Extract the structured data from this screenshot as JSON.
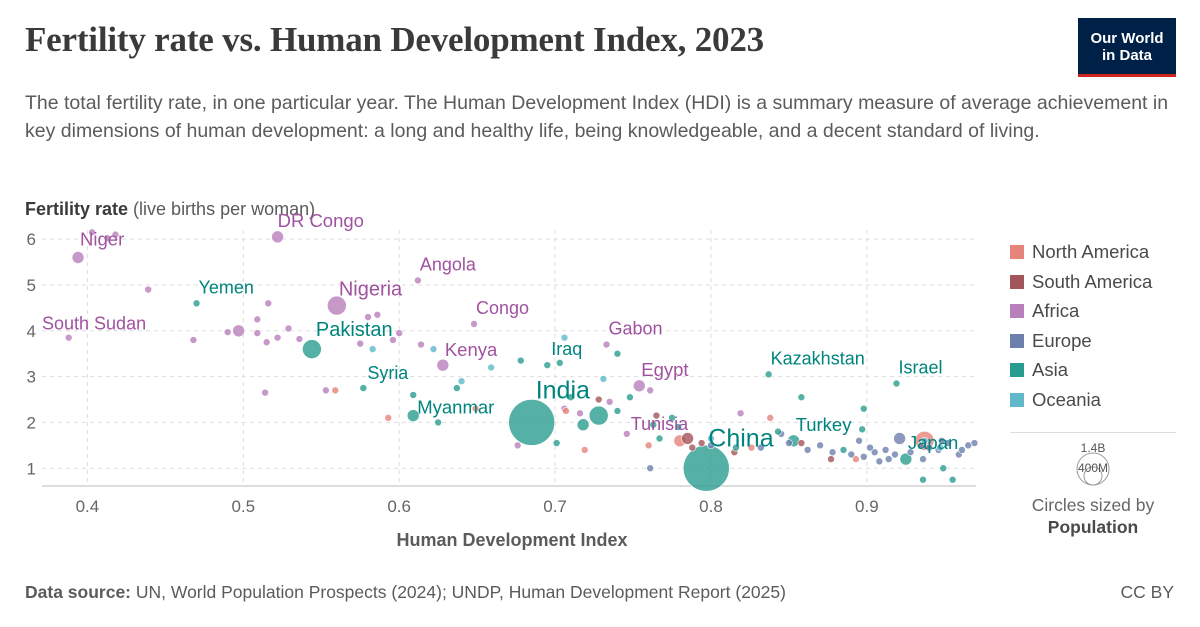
{
  "header": {
    "title": "Fertility rate vs. Human Development Index, 2023",
    "subtitle": "The total fertility rate, in one particular year. The Human Development Index (HDI) is a summary measure of average achievement in key dimensions of human development: a long and healthy life, being knowledgeable, and a decent standard of living.",
    "logo_line1": "Our World",
    "logo_line2": "in Data"
  },
  "axis": {
    "y_bold": "Fertility rate",
    "y_rest": " (live births per woman)",
    "x_title": "Human Development Index"
  },
  "legend": {
    "items": [
      {
        "name": "North America",
        "color": "#e6837a"
      },
      {
        "name": "South America",
        "color": "#a2555a"
      },
      {
        "name": "Africa",
        "color": "#b97fbb"
      },
      {
        "name": "Europe",
        "color": "#6d7fad"
      },
      {
        "name": "Asia",
        "color": "#2a9c8f"
      },
      {
        "name": "Oceania",
        "color": "#5fb9c9"
      }
    ],
    "size_big": "1.4B",
    "size_small": "400M",
    "size_caption1": "Circles sized by",
    "size_caption2": "Population"
  },
  "footer": {
    "source_bold": "Data source:",
    "source_text": " UN, World Population Prospects (2024); UNDP, Human Development Report (2025)",
    "license": "CC BY"
  },
  "chart_data": {
    "type": "scatter",
    "title": "Fertility rate vs. Human Development Index, 2023",
    "xlabel": "Human Development Index",
    "ylabel": "Fertility rate (live births per woman)",
    "xlim": [
      0.385,
      0.97
    ],
    "ylim": [
      0.7,
      6.2
    ],
    "xticks": [
      "0.4",
      "0.5",
      "0.6",
      "0.7",
      "0.8",
      "0.9"
    ],
    "xtick_values": [
      0.4,
      0.5,
      0.6,
      0.7,
      0.8,
      0.9
    ],
    "yticks": [
      "1",
      "2",
      "3",
      "4",
      "5",
      "6"
    ],
    "ytick_values": [
      1,
      2,
      3,
      4,
      5,
      6
    ],
    "grid": true,
    "legend_position": "right",
    "size_variable": "Population",
    "points": [
      {
        "x": 0.394,
        "y": 5.6,
        "r": "Africa",
        "p": "med",
        "label": "Niger"
      },
      {
        "x": 0.522,
        "y": 6.05,
        "r": "Africa",
        "p": "med",
        "label": "DR Congo"
      },
      {
        "x": 0.612,
        "y": 5.1,
        "r": "Africa",
        "p": "small",
        "label": "Angola"
      },
      {
        "x": 0.47,
        "y": 4.6,
        "r": "Asia",
        "p": "small",
        "label": "Yemen"
      },
      {
        "x": 0.56,
        "y": 4.55,
        "r": "Africa",
        "p": "large",
        "label": "Nigeria"
      },
      {
        "x": 0.648,
        "y": 4.15,
        "r": "Africa",
        "p": "small",
        "label": "Congo"
      },
      {
        "x": 0.388,
        "y": 3.85,
        "r": "Africa",
        "p": "small",
        "label": "South Sudan"
      },
      {
        "x": 0.544,
        "y": 3.6,
        "r": "Asia",
        "p": "large",
        "label": "Pakistan"
      },
      {
        "x": 0.733,
        "y": 3.7,
        "r": "Africa",
        "p": "small",
        "label": "Gabon"
      },
      {
        "x": 0.628,
        "y": 3.25,
        "r": "Africa",
        "p": "med",
        "label": "Kenya"
      },
      {
        "x": 0.695,
        "y": 3.25,
        "r": "Asia",
        "p": "small",
        "label": "Iraq"
      },
      {
        "x": 0.754,
        "y": 2.8,
        "r": "Africa",
        "p": "med",
        "label": "Egypt"
      },
      {
        "x": 0.577,
        "y": 2.75,
        "r": "Asia",
        "p": "small",
        "label": "Syria"
      },
      {
        "x": 0.837,
        "y": 3.05,
        "r": "Asia",
        "p": "small",
        "label": "Kazakhstan"
      },
      {
        "x": 0.919,
        "y": 2.85,
        "r": "Asia",
        "p": "small",
        "label": "Israel"
      },
      {
        "x": 0.685,
        "y": 2.0,
        "r": "Asia",
        "p": "huge",
        "label": "India"
      },
      {
        "x": 0.609,
        "y": 2.15,
        "r": "Asia",
        "p": "med",
        "label": "Myanmar"
      },
      {
        "x": 0.746,
        "y": 1.75,
        "r": "Africa",
        "p": "small",
        "label": "Tunisia"
      },
      {
        "x": 0.797,
        "y": 1.0,
        "r": "Asia",
        "p": "huge",
        "label": "China"
      },
      {
        "x": 0.853,
        "y": 1.6,
        "r": "Asia",
        "p": "med",
        "label": "Turkey"
      },
      {
        "x": 0.925,
        "y": 1.2,
        "r": "Asia",
        "p": "med",
        "label": "Japan"
      },
      {
        "x": 0.403,
        "y": 6.15,
        "r": "Africa",
        "p": "small"
      },
      {
        "x": 0.413,
        "y": 6.02,
        "r": "Africa",
        "p": "small"
      },
      {
        "x": 0.418,
        "y": 6.1,
        "r": "Africa",
        "p": "small"
      },
      {
        "x": 0.439,
        "y": 4.9,
        "r": "Africa",
        "p": "small"
      },
      {
        "x": 0.497,
        "y": 4.0,
        "r": "Africa",
        "p": "med"
      },
      {
        "x": 0.49,
        "y": 3.97,
        "r": "Africa",
        "p": "small"
      },
      {
        "x": 0.509,
        "y": 4.25,
        "r": "Africa",
        "p": "small"
      },
      {
        "x": 0.516,
        "y": 4.6,
        "r": "Africa",
        "p": "small"
      },
      {
        "x": 0.509,
        "y": 3.95,
        "r": "Africa",
        "p": "small"
      },
      {
        "x": 0.515,
        "y": 3.75,
        "r": "Africa",
        "p": "small"
      },
      {
        "x": 0.522,
        "y": 3.85,
        "r": "Africa",
        "p": "small"
      },
      {
        "x": 0.536,
        "y": 3.82,
        "r": "Africa",
        "p": "small"
      },
      {
        "x": 0.529,
        "y": 4.05,
        "r": "Africa",
        "p": "small"
      },
      {
        "x": 0.468,
        "y": 3.8,
        "r": "Africa",
        "p": "small"
      },
      {
        "x": 0.514,
        "y": 2.65,
        "r": "Africa",
        "p": "small"
      },
      {
        "x": 0.586,
        "y": 4.35,
        "r": "Africa",
        "p": "small"
      },
      {
        "x": 0.58,
        "y": 4.3,
        "r": "Africa",
        "p": "small"
      },
      {
        "x": 0.596,
        "y": 3.8,
        "r": "Africa",
        "p": "small"
      },
      {
        "x": 0.6,
        "y": 3.95,
        "r": "Africa",
        "p": "small"
      },
      {
        "x": 0.614,
        "y": 3.7,
        "r": "Africa",
        "p": "small"
      },
      {
        "x": 0.575,
        "y": 3.72,
        "r": "Africa",
        "p": "small"
      },
      {
        "x": 0.553,
        "y": 2.7,
        "r": "Africa",
        "p": "small"
      },
      {
        "x": 0.559,
        "y": 2.7,
        "r": "North America",
        "p": "small"
      },
      {
        "x": 0.676,
        "y": 1.5,
        "r": "Africa",
        "p": "small"
      },
      {
        "x": 0.706,
        "y": 2.3,
        "r": "Africa",
        "p": "small"
      },
      {
        "x": 0.716,
        "y": 2.2,
        "r": "Africa",
        "p": "small"
      },
      {
        "x": 0.735,
        "y": 2.45,
        "r": "Africa",
        "p": "small"
      },
      {
        "x": 0.761,
        "y": 2.7,
        "r": "Africa",
        "p": "small"
      },
      {
        "x": 0.819,
        "y": 2.2,
        "r": "Africa",
        "p": "small"
      },
      {
        "x": 0.593,
        "y": 2.1,
        "r": "North America",
        "p": "small"
      },
      {
        "x": 0.649,
        "y": 2.3,
        "r": "North America",
        "p": "small"
      },
      {
        "x": 0.707,
        "y": 2.25,
        "r": "North America",
        "p": "small"
      },
      {
        "x": 0.719,
        "y": 1.4,
        "r": "North America",
        "p": "small"
      },
      {
        "x": 0.76,
        "y": 1.5,
        "r": "North America",
        "p": "small"
      },
      {
        "x": 0.78,
        "y": 1.6,
        "r": "North America",
        "p": "med"
      },
      {
        "x": 0.826,
        "y": 1.45,
        "r": "North America",
        "p": "small"
      },
      {
        "x": 0.838,
        "y": 2.1,
        "r": "North America",
        "p": "small"
      },
      {
        "x": 0.937,
        "y": 1.6,
        "r": "North America",
        "p": "large"
      },
      {
        "x": 0.893,
        "y": 1.2,
        "r": "North America",
        "p": "small"
      },
      {
        "x": 0.728,
        "y": 2.5,
        "r": "South America",
        "p": "small"
      },
      {
        "x": 0.765,
        "y": 2.15,
        "r": "South America",
        "p": "small"
      },
      {
        "x": 0.785,
        "y": 1.65,
        "r": "South America",
        "p": "med"
      },
      {
        "x": 0.794,
        "y": 1.55,
        "r": "South America",
        "p": "small"
      },
      {
        "x": 0.788,
        "y": 1.45,
        "r": "South America",
        "p": "small"
      },
      {
        "x": 0.815,
        "y": 1.35,
        "r": "South America",
        "p": "small"
      },
      {
        "x": 0.858,
        "y": 1.55,
        "r": "South America",
        "p": "small"
      },
      {
        "x": 0.877,
        "y": 1.2,
        "r": "South America",
        "p": "small"
      },
      {
        "x": 0.761,
        "y": 1.0,
        "r": "Europe",
        "p": "small"
      },
      {
        "x": 0.8,
        "y": 1.5,
        "r": "Europe",
        "p": "small"
      },
      {
        "x": 0.832,
        "y": 1.45,
        "r": "Europe",
        "p": "small"
      },
      {
        "x": 0.845,
        "y": 1.75,
        "r": "Europe",
        "p": "small"
      },
      {
        "x": 0.85,
        "y": 1.55,
        "r": "Europe",
        "p": "small"
      },
      {
        "x": 0.862,
        "y": 1.4,
        "r": "Europe",
        "p": "small"
      },
      {
        "x": 0.87,
        "y": 1.5,
        "r": "Europe",
        "p": "small"
      },
      {
        "x": 0.878,
        "y": 1.35,
        "r": "Europe",
        "p": "small"
      },
      {
        "x": 0.89,
        "y": 1.3,
        "r": "Europe",
        "p": "small"
      },
      {
        "x": 0.895,
        "y": 1.6,
        "r": "Europe",
        "p": "small"
      },
      {
        "x": 0.905,
        "y": 1.35,
        "r": "Europe",
        "p": "small"
      },
      {
        "x": 0.912,
        "y": 1.4,
        "r": "Europe",
        "p": "small"
      },
      {
        "x": 0.918,
        "y": 1.3,
        "r": "Europe",
        "p": "small"
      },
      {
        "x": 0.921,
        "y": 1.65,
        "r": "Europe",
        "p": "med"
      },
      {
        "x": 0.928,
        "y": 1.35,
        "r": "Europe",
        "p": "small"
      },
      {
        "x": 0.935,
        "y": 1.5,
        "r": "Europe",
        "p": "small"
      },
      {
        "x": 0.94,
        "y": 1.45,
        "r": "Europe",
        "p": "small"
      },
      {
        "x": 0.946,
        "y": 1.4,
        "r": "Europe",
        "p": "small"
      },
      {
        "x": 0.952,
        "y": 1.55,
        "r": "Europe",
        "p": "small"
      },
      {
        "x": 0.959,
        "y": 1.3,
        "r": "Europe",
        "p": "small"
      },
      {
        "x": 0.965,
        "y": 1.5,
        "r": "Europe",
        "p": "small"
      },
      {
        "x": 0.914,
        "y": 1.2,
        "r": "Europe",
        "p": "small"
      },
      {
        "x": 0.898,
        "y": 1.25,
        "r": "Europe",
        "p": "small"
      },
      {
        "x": 0.936,
        "y": 1.2,
        "r": "Europe",
        "p": "small"
      },
      {
        "x": 0.908,
        "y": 1.15,
        "r": "Europe",
        "p": "small"
      },
      {
        "x": 0.902,
        "y": 1.45,
        "r": "Europe",
        "p": "small"
      },
      {
        "x": 0.948,
        "y": 1.6,
        "r": "Europe",
        "p": "small"
      },
      {
        "x": 0.961,
        "y": 1.4,
        "r": "Europe",
        "p": "small"
      },
      {
        "x": 0.969,
        "y": 1.55,
        "r": "Europe",
        "p": "small"
      },
      {
        "x": 0.609,
        "y": 2.6,
        "r": "Asia",
        "p": "small"
      },
      {
        "x": 0.637,
        "y": 2.75,
        "r": "Asia",
        "p": "small"
      },
      {
        "x": 0.625,
        "y": 2.0,
        "r": "Asia",
        "p": "small"
      },
      {
        "x": 0.678,
        "y": 3.35,
        "r": "Asia",
        "p": "small"
      },
      {
        "x": 0.703,
        "y": 3.3,
        "r": "Asia",
        "p": "small"
      },
      {
        "x": 0.74,
        "y": 3.5,
        "r": "Asia",
        "p": "small"
      },
      {
        "x": 0.71,
        "y": 2.55,
        "r": "Asia",
        "p": "small"
      },
      {
        "x": 0.718,
        "y": 1.95,
        "r": "Asia",
        "p": "med"
      },
      {
        "x": 0.728,
        "y": 2.15,
        "r": "Asia",
        "p": "large"
      },
      {
        "x": 0.74,
        "y": 2.25,
        "r": "Asia",
        "p": "small"
      },
      {
        "x": 0.748,
        "y": 2.55,
        "r": "Asia",
        "p": "small"
      },
      {
        "x": 0.763,
        "y": 1.95,
        "r": "Asia",
        "p": "small"
      },
      {
        "x": 0.767,
        "y": 1.65,
        "r": "Asia",
        "p": "small"
      },
      {
        "x": 0.775,
        "y": 2.1,
        "r": "Asia",
        "p": "small"
      },
      {
        "x": 0.779,
        "y": 1.9,
        "r": "Asia",
        "p": "small"
      },
      {
        "x": 0.701,
        "y": 1.55,
        "r": "Asia",
        "p": "small"
      },
      {
        "x": 0.816,
        "y": 1.45,
        "r": "Asia",
        "p": "small"
      },
      {
        "x": 0.843,
        "y": 1.8,
        "r": "Asia",
        "p": "small"
      },
      {
        "x": 0.858,
        "y": 2.55,
        "r": "Asia",
        "p": "small"
      },
      {
        "x": 0.885,
        "y": 1.4,
        "r": "Asia",
        "p": "small"
      },
      {
        "x": 0.898,
        "y": 2.3,
        "r": "Asia",
        "p": "small"
      },
      {
        "x": 0.897,
        "y": 1.85,
        "r": "Asia",
        "p": "small"
      },
      {
        "x": 0.936,
        "y": 0.75,
        "r": "Asia",
        "p": "small"
      },
      {
        "x": 0.949,
        "y": 1.0,
        "r": "Asia",
        "p": "small"
      },
      {
        "x": 0.955,
        "y": 0.75,
        "r": "Asia",
        "p": "small"
      },
      {
        "x": 0.622,
        "y": 3.6,
        "r": "Oceania",
        "p": "small"
      },
      {
        "x": 0.64,
        "y": 2.9,
        "r": "Oceania",
        "p": "small"
      },
      {
        "x": 0.659,
        "y": 3.2,
        "r": "Oceania",
        "p": "small"
      },
      {
        "x": 0.583,
        "y": 3.6,
        "r": "Oceania",
        "p": "small"
      },
      {
        "x": 0.706,
        "y": 3.85,
        "r": "Oceania",
        "p": "small"
      },
      {
        "x": 0.731,
        "y": 2.95,
        "r": "Oceania",
        "p": "small"
      },
      {
        "x": 0.8,
        "y": 1.65,
        "r": "Oceania",
        "p": "small"
      },
      {
        "x": 0.947,
        "y": 1.45,
        "r": "Oceania",
        "p": "small"
      },
      {
        "x": 0.937,
        "y": 1.6,
        "r": "Oceania",
        "p": "small"
      }
    ]
  }
}
